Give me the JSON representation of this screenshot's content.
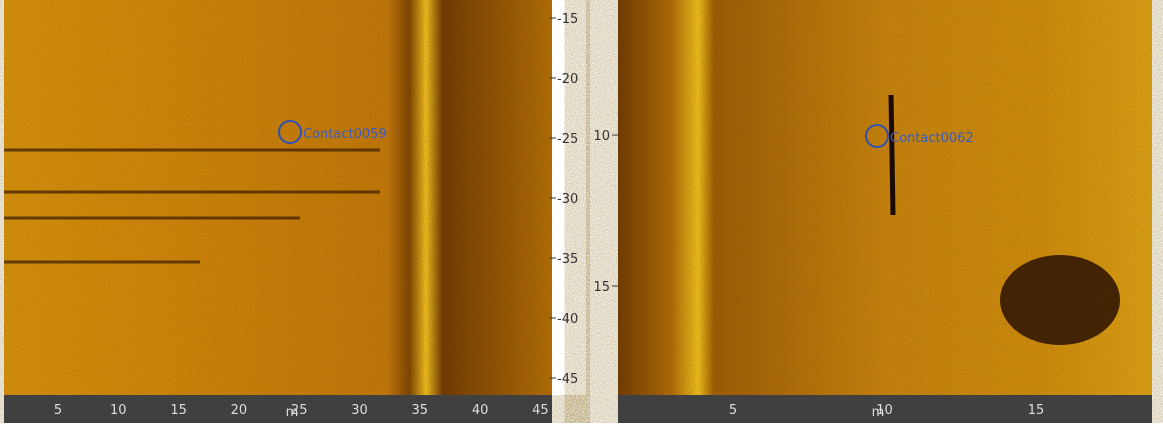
{
  "left_panel": {
    "contact_label": "Contact0059",
    "y_ticks": [
      "-15",
      "-20",
      "-25",
      "-30",
      "-35",
      "-40",
      "-45"
    ],
    "x_ticks": [
      "5",
      "10",
      "15",
      "20",
      "25",
      "30",
      "35",
      "40",
      "45"
    ],
    "x_unit": "m"
  },
  "right_panel": {
    "contact_label": "Contact0062",
    "y_ticks": [
      "10",
      "15"
    ],
    "x_ticks": [
      "5",
      "10",
      "15"
    ],
    "x_unit": "m"
  }
}
